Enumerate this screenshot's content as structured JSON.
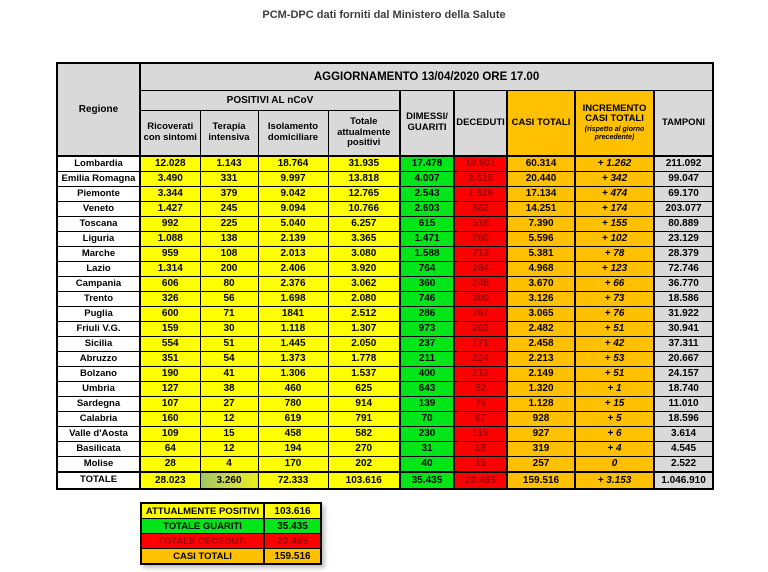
{
  "page_title": "PCM-DPC dati forniti dal Ministero della Salute",
  "table": {
    "update_header": "AGGIORNAMENTO 13/04/2020 ORE 17.00",
    "region_header": "Regione",
    "positivi_group_header": "POSITIVI AL nCoV",
    "positivi_columns": [
      "Ricoverati con sintomi",
      "Terapia intensiva",
      "Isolamento domiciliare",
      "Totale attualmente positivi"
    ],
    "dimessi_header": "DIMESSI/\nGUARITI",
    "deceduti_header": "DECEDUTI",
    "casi_totali_header": "CASI TOTALI",
    "incremento_header": "INCREMENTO CASI  TOTALI",
    "incremento_subheader": "(rispetto al giorno precedente)",
    "tamponi_header": "TAMPONI",
    "rows": [
      {
        "regione": "Lombardia",
        "values": [
          "12.028",
          "1.143",
          "18.764",
          "31.935",
          "17.478",
          "10.901",
          "60.314",
          "+ 1.262",
          "211.092"
        ]
      },
      {
        "regione": "Emilia Romagna",
        "values": [
          "3.490",
          "331",
          "9.997",
          "13.818",
          "4.007",
          "2.615",
          "20.440",
          "+ 342",
          "99.047"
        ]
      },
      {
        "regione": "Piemonte",
        "values": [
          "3.344",
          "379",
          "9.042",
          "12.765",
          "2.543",
          "1.826",
          "17.134",
          "+ 474",
          "69.170"
        ]
      },
      {
        "regione": "Veneto",
        "values": [
          "1.427",
          "245",
          "9.094",
          "10.766",
          "2.603",
          "882",
          "14.251",
          "+ 174",
          "203.077"
        ]
      },
      {
        "regione": "Toscana",
        "values": [
          "992",
          "225",
          "5.040",
          "6.257",
          "615",
          "518",
          "7.390",
          "+ 155",
          "80.889"
        ]
      },
      {
        "regione": "Liguria",
        "values": [
          "1.088",
          "138",
          "2.139",
          "3.365",
          "1.471",
          "760",
          "5.596",
          "+ 102",
          "23.129"
        ]
      },
      {
        "regione": "Marche",
        "values": [
          "959",
          "108",
          "2.013",
          "3.080",
          "1.588",
          "713",
          "5.381",
          "+ 78",
          "28.379"
        ]
      },
      {
        "regione": "Lazio",
        "values": [
          "1.314",
          "200",
          "2.406",
          "3.920",
          "764",
          "284",
          "4.968",
          "+ 123",
          "72.746"
        ]
      },
      {
        "regione": "Campania",
        "values": [
          "606",
          "80",
          "2.376",
          "3.062",
          "360",
          "248",
          "3.670",
          "+ 66",
          "36.770"
        ]
      },
      {
        "regione": "Trento",
        "values": [
          "326",
          "56",
          "1.698",
          "2.080",
          "746",
          "300",
          "3.126",
          "+ 73",
          "18.586"
        ]
      },
      {
        "regione": "Puglia",
        "values": [
          "600",
          "71",
          "1841",
          "2.512",
          "286",
          "267",
          "3.065",
          "+ 76",
          "31.922"
        ]
      },
      {
        "regione": "Friuli V.G.",
        "values": [
          "159",
          "30",
          "1.118",
          "1.307",
          "973",
          "202",
          "2.482",
          "+ 51",
          "30.941"
        ]
      },
      {
        "regione": "Sicilia",
        "values": [
          "554",
          "51",
          "1.445",
          "2.050",
          "237",
          "171",
          "2.458",
          "+ 42",
          "37.311"
        ]
      },
      {
        "regione": "Abruzzo",
        "values": [
          "351",
          "54",
          "1.373",
          "1.778",
          "211",
          "224",
          "2.213",
          "+ 53",
          "20.667"
        ]
      },
      {
        "regione": "Bolzano",
        "values": [
          "190",
          "41",
          "1.306",
          "1.537",
          "400",
          "212",
          "2.149",
          "+ 51",
          "24.157"
        ]
      },
      {
        "regione": "Umbria",
        "values": [
          "127",
          "38",
          "460",
          "625",
          "643",
          "52",
          "1.320",
          "+ 1",
          "18.740"
        ]
      },
      {
        "regione": "Sardegna",
        "values": [
          "107",
          "27",
          "780",
          "914",
          "139",
          "75",
          "1.128",
          "+ 15",
          "11.010"
        ]
      },
      {
        "regione": "Calabria",
        "values": [
          "160",
          "12",
          "619",
          "791",
          "70",
          "67",
          "928",
          "+ 5",
          "18.596"
        ]
      },
      {
        "regione": "Valle d'Aosta",
        "values": [
          "109",
          "15",
          "458",
          "582",
          "230",
          "115",
          "927",
          "+ 6",
          "3.614"
        ]
      },
      {
        "regione": "Basilicata",
        "values": [
          "64",
          "12",
          "194",
          "270",
          "31",
          "18",
          "319",
          "+ 4",
          "4.545"
        ]
      },
      {
        "regione": "Molise",
        "values": [
          "28",
          "4",
          "170",
          "202",
          "40",
          "15",
          "257",
          "0",
          "2.522"
        ]
      }
    ],
    "total_row": {
      "regione": "TOTALE",
      "values": [
        "28.023",
        "3.260",
        "72.333",
        "103.616",
        "35.435",
        "20.465",
        "159.516",
        "+ 3.153",
        "1.046.910"
      ]
    }
  },
  "summary": {
    "rows": [
      {
        "label": "ATTUALMENTE POSITIVI",
        "value": "103.616"
      },
      {
        "label": "TOTALE GUARITI",
        "value": "35.435"
      },
      {
        "label": "TOTALE DECEDUTI",
        "value": "20.465"
      },
      {
        "label": "CASI TOTALI",
        "value": "159.516"
      }
    ]
  },
  "colors": {
    "positivi_yellow": "#FFFF00",
    "guariti_green": "#00E619",
    "deceduti_red": "#FF0000",
    "deceduti_text_dark_red": "#990000",
    "casi_totali_orange": "#FFC000",
    "tamponi_gray": "#D9D9D9",
    "header_gray": "#D9D9D9",
    "total_intensiva_highlight": "#C8D94F"
  }
}
